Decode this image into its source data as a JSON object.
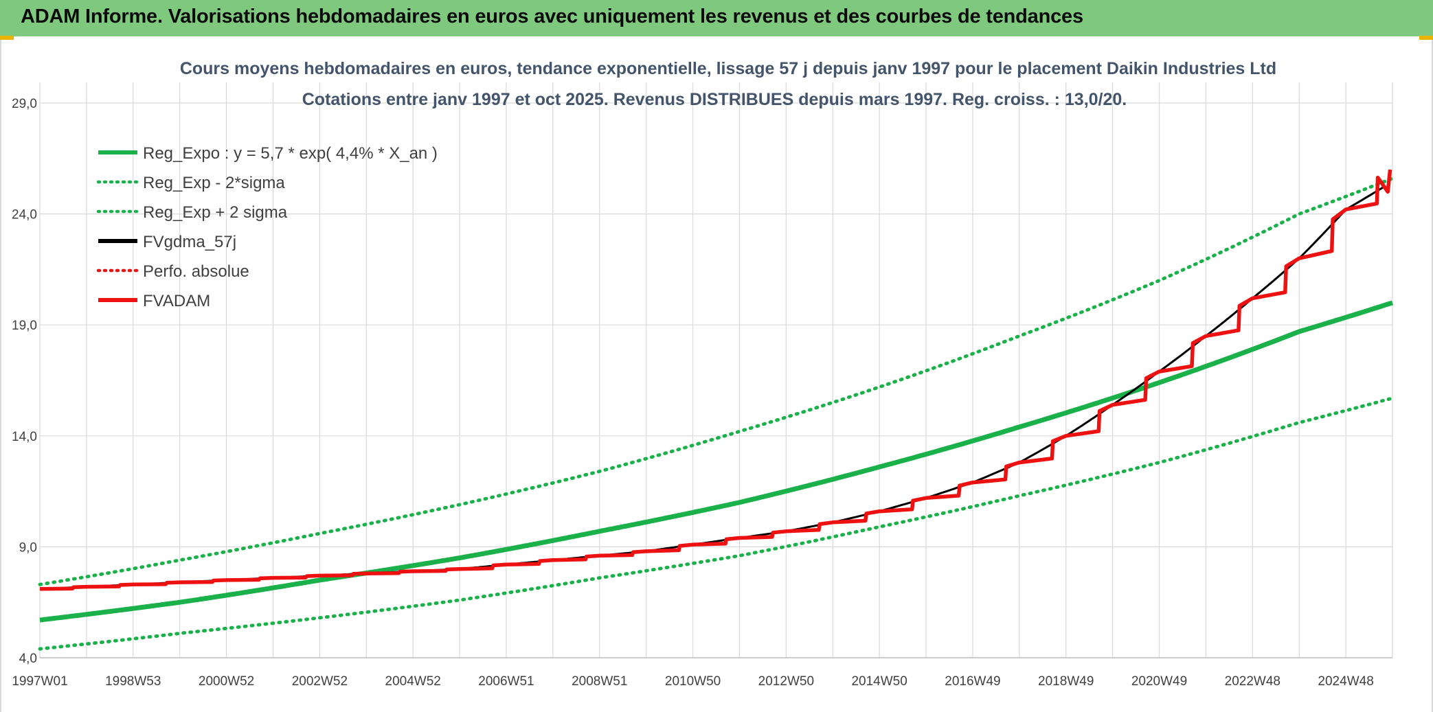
{
  "header": {
    "title": "ADAM Informe. Valorisations hebdomadaires en euros avec uniquement les revenus et des courbes de tendances"
  },
  "colors": {
    "banner": "#7fc97f",
    "green": "#1ab04a",
    "red": "#ee1111",
    "black": "#000000",
    "grid": "#d9d9d9",
    "title": "#44546a"
  },
  "chart_data": {
    "type": "line",
    "title": "Cours moyens hebdomadaires en euros, tendance exponentielle, lissage 57 j depuis janv 1997 pour le placement Daikin Industries Ltd",
    "subtitle": "Cotations entre janv 1997 et oct 2025. Revenus DISTRIBUES depuis mars 1997. Reg. croiss. : 13,0/20.",
    "xlabel": "",
    "ylabel": "",
    "ylim": [
      4.0,
      29.0
    ],
    "y_ticks": [
      "4,0",
      "9,0",
      "14,0",
      "19,0",
      "24,0",
      "29,0"
    ],
    "x_range_years": [
      1997.0,
      2026.0
    ],
    "x_ticks": [
      "1997W01",
      "1998W53",
      "2000W52",
      "2002W52",
      "2004W52",
      "2006W51",
      "2008W51",
      "2010W50",
      "2012W50",
      "2014W50",
      "2016W49",
      "2018W49",
      "2020W49",
      "2022W48",
      "2024W48"
    ],
    "grid": true,
    "legend_position": "top-left",
    "legend": [
      {
        "name": "Reg_Expo : y = 5,7 * exp( 4,4% *  X_an )",
        "color": "#1ab04a",
        "style": "solid"
      },
      {
        "name": "Reg_Exp - 2*sigma",
        "color": "#1ab04a",
        "style": "dotted"
      },
      {
        "name": "Reg_Exp + 2 sigma",
        "color": "#1ab04a",
        "style": "dotted"
      },
      {
        "name": "FVgdma_57j",
        "color": "#000000",
        "style": "solid"
      },
      {
        "name": "Perfo. absolue",
        "color": "#ee1111",
        "style": "dotted"
      },
      {
        "name": "FVADAM",
        "color": "#ee1111",
        "style": "solid"
      }
    ],
    "series": [
      {
        "name": "Reg_Expo : y = 5,7 * exp( 4,4% *  X_an )",
        "x": [
          1997,
          2000,
          2003,
          2006,
          2009,
          2012,
          2015,
          2018,
          2021,
          2024,
          2026
        ],
        "y": [
          5.7,
          6.5,
          7.5,
          8.5,
          9.7,
          11.0,
          12.6,
          14.4,
          16.4,
          18.7,
          20.0
        ]
      },
      {
        "name": "Reg_Exp - 2*sigma",
        "x": [
          1997,
          2000,
          2003,
          2006,
          2009,
          2012,
          2015,
          2018,
          2021,
          2024,
          2026
        ],
        "y": [
          4.4,
          5.1,
          5.8,
          6.6,
          7.6,
          8.6,
          9.9,
          11.3,
          12.8,
          14.6,
          15.7
        ]
      },
      {
        "name": "Reg_Exp + 2 sigma",
        "x": [
          1997,
          2000,
          2003,
          2006,
          2009,
          2012,
          2015,
          2018,
          2021,
          2024,
          2026
        ],
        "y": [
          7.3,
          8.4,
          9.6,
          10.9,
          12.4,
          14.2,
          16.2,
          18.5,
          21.0,
          24.0,
          25.6
        ]
      },
      {
        "name": "FVgdma_57j",
        "x": [
          1997,
          1998,
          1999,
          2000,
          2001,
          2002,
          2003,
          2004,
          2005,
          2006,
          2007,
          2008,
          2009,
          2010,
          2011,
          2012,
          2013,
          2014,
          2015,
          2016,
          2017,
          2018,
          2019,
          2020,
          2021,
          2022,
          2023,
          2024,
          2025,
          2025.8
        ],
        "y": [
          7.1,
          7.2,
          7.3,
          7.4,
          7.5,
          7.6,
          7.7,
          7.8,
          7.9,
          8.0,
          8.2,
          8.4,
          8.6,
          8.8,
          9.1,
          9.4,
          9.7,
          10.1,
          10.6,
          11.2,
          11.9,
          12.8,
          14.0,
          15.4,
          16.9,
          18.5,
          20.2,
          22.0,
          24.2,
          25.2
        ]
      },
      {
        "name": "FVADAM",
        "x": [
          1997,
          1998,
          1999,
          2000,
          2001,
          2002,
          2003,
          2004,
          2005,
          2006,
          2007,
          2008,
          2009,
          2010,
          2011,
          2012,
          2013,
          2014,
          2015,
          2016,
          2017,
          2018,
          2019,
          2020,
          2021,
          2022,
          2023,
          2024,
          2025,
          2025.95
        ],
        "y": [
          7.1,
          7.2,
          7.3,
          7.4,
          7.5,
          7.6,
          7.7,
          7.8,
          7.9,
          8.0,
          8.2,
          8.4,
          8.6,
          8.8,
          9.1,
          9.4,
          9.7,
          10.1,
          10.6,
          11.2,
          11.9,
          12.8,
          14.0,
          15.4,
          16.9,
          18.5,
          20.2,
          22.0,
          24.2,
          26.0
        ]
      }
    ]
  }
}
